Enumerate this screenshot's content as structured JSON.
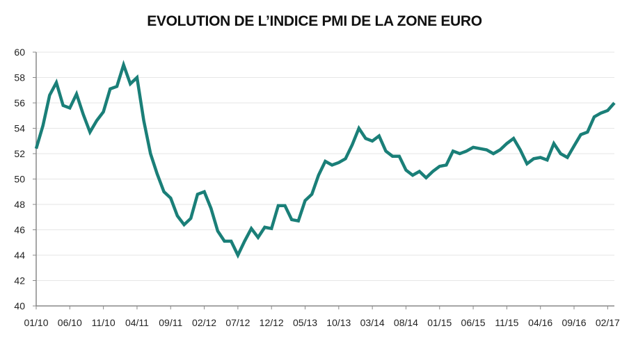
{
  "chart_data": {
    "type": "line",
    "title": "EVOLUTION DE L’INDICE PMI DE LA ZONE EURO",
    "xlabel": "",
    "ylabel": "",
    "ylim": [
      40,
      60
    ],
    "yticks": [
      40,
      42,
      44,
      46,
      48,
      50,
      52,
      54,
      56,
      58,
      60
    ],
    "grid": true,
    "legend": "none",
    "color": "#1a7f78",
    "x_tick_labels": [
      "01/10",
      "06/10",
      "11/10",
      "04/11",
      "09/11",
      "02/12",
      "07/12",
      "12/12",
      "05/13",
      "10/13",
      "03/14",
      "08/14",
      "01/15",
      "06/15",
      "11/15",
      "04/16",
      "09/16",
      "02/17"
    ],
    "x": [
      "01/10",
      "02/10",
      "03/10",
      "04/10",
      "05/10",
      "06/10",
      "07/10",
      "08/10",
      "09/10",
      "10/10",
      "11/10",
      "12/10",
      "01/11",
      "02/11",
      "03/11",
      "04/11",
      "05/11",
      "06/11",
      "07/11",
      "08/11",
      "09/11",
      "10/11",
      "11/11",
      "12/11",
      "01/12",
      "02/12",
      "03/12",
      "04/12",
      "05/12",
      "06/12",
      "07/12",
      "08/12",
      "09/12",
      "10/12",
      "11/12",
      "12/12",
      "01/13",
      "02/13",
      "03/13",
      "04/13",
      "05/13",
      "06/13",
      "07/13",
      "08/13",
      "09/13",
      "10/13",
      "11/13",
      "12/13",
      "01/14",
      "02/14",
      "03/14",
      "04/14",
      "05/14",
      "06/14",
      "07/14",
      "08/14",
      "09/14",
      "10/14",
      "11/14",
      "12/14",
      "01/15",
      "02/15",
      "03/15",
      "04/15",
      "05/15",
      "06/15",
      "07/15",
      "08/15",
      "09/15",
      "10/15",
      "11/15",
      "12/15",
      "01/16",
      "02/16",
      "03/16",
      "04/16",
      "05/16",
      "06/16",
      "07/16",
      "08/16",
      "09/16",
      "10/16",
      "11/16",
      "12/16",
      "01/17",
      "02/17",
      "03/17"
    ],
    "values": [
      52.4,
      54.2,
      56.6,
      57.6,
      55.8,
      55.6,
      56.7,
      55.1,
      53.7,
      54.6,
      55.3,
      57.1,
      57.3,
      59.0,
      57.5,
      58.0,
      54.6,
      52.0,
      50.4,
      49.0,
      48.5,
      47.1,
      46.4,
      46.9,
      48.8,
      49.0,
      47.7,
      45.9,
      45.1,
      45.1,
      44.0,
      45.1,
      46.1,
      45.4,
      46.2,
      46.1,
      47.9,
      47.9,
      46.8,
      46.7,
      48.3,
      48.8,
      50.3,
      51.4,
      51.1,
      51.3,
      51.6,
      52.7,
      54.0,
      53.2,
      53.0,
      53.4,
      52.2,
      51.8,
      51.8,
      50.7,
      50.3,
      50.6,
      50.1,
      50.6,
      51.0,
      51.1,
      52.2,
      52.0,
      52.2,
      52.5,
      52.4,
      52.3,
      52.0,
      52.3,
      52.8,
      53.2,
      52.3,
      51.2,
      51.6,
      51.7,
      51.5,
      52.8,
      52.0,
      51.7,
      52.6,
      53.5,
      53.7,
      54.9,
      55.2,
      55.4,
      56.0
    ]
  }
}
